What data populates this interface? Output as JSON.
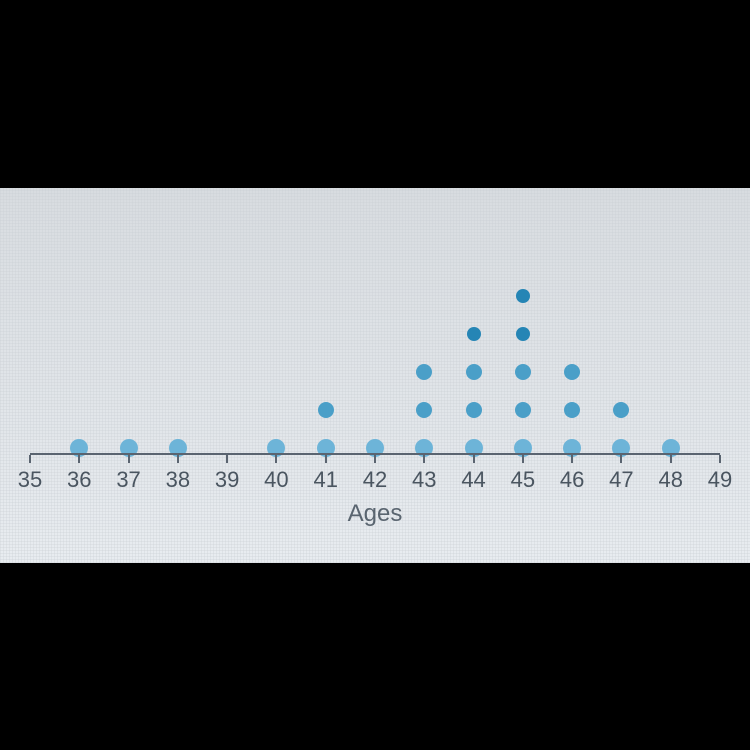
{
  "dotplot": {
    "type": "dotplot",
    "axis_title": "Ages",
    "axis_title_fontsize": 24,
    "tick_label_fontsize": 22,
    "axis_color": "#5a6470",
    "label_color": "#4a5560",
    "background_gradient_top": "#d8dce0",
    "background_gradient_bottom": "#e8ecf0",
    "xlim": [
      35,
      49
    ],
    "xticks": [
      35,
      36,
      37,
      38,
      39,
      40,
      41,
      42,
      43,
      44,
      45,
      46,
      47,
      48,
      49
    ],
    "dot_radius_base": 9,
    "dot_radius_top": 7,
    "dot_color_base": "#6db4d8",
    "dot_color_mid": "#4a9fc8",
    "dot_color_top": "#2585b5",
    "row_spacing": 38,
    "data": [
      {
        "x": 36,
        "count": 1
      },
      {
        "x": 37,
        "count": 1
      },
      {
        "x": 38,
        "count": 1
      },
      {
        "x": 40,
        "count": 1
      },
      {
        "x": 41,
        "count": 2
      },
      {
        "x": 42,
        "count": 1
      },
      {
        "x": 43,
        "count": 3
      },
      {
        "x": 44,
        "count": 4
      },
      {
        "x": 45,
        "count": 5
      },
      {
        "x": 46,
        "count": 3
      },
      {
        "x": 47,
        "count": 2
      },
      {
        "x": 48,
        "count": 1
      }
    ]
  }
}
